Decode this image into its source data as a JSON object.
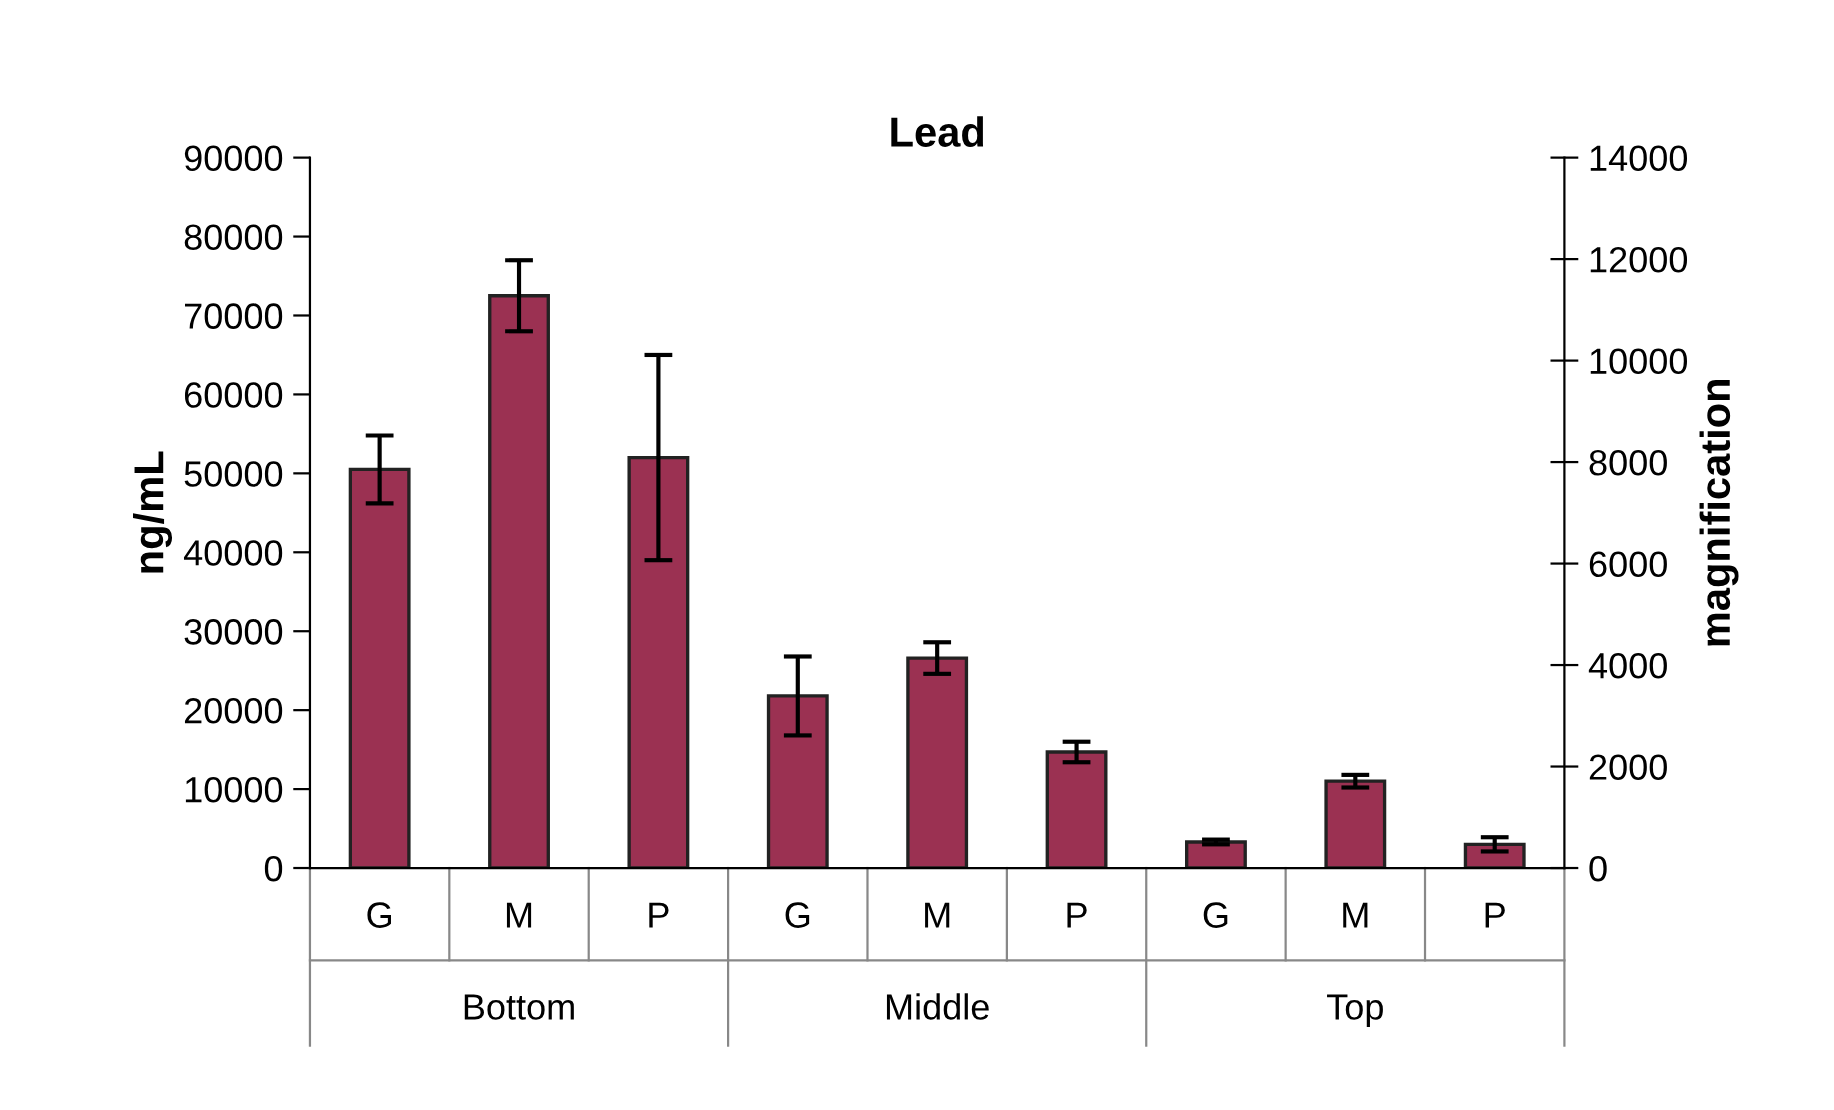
{
  "chart_data": {
    "type": "bar",
    "title": "Lead",
    "ylabel": "ng/mL",
    "y2label": "magnification",
    "categories": [
      "G",
      "M",
      "P",
      "G",
      "M",
      "P",
      "G",
      "M",
      "P"
    ],
    "annotations": [
      "Bottom",
      "Middle",
      "Top"
    ],
    "series": [
      {
        "color": "#9b3152",
        "values": [
          50500,
          72500,
          52000,
          21800,
          26600,
          14700,
          3300,
          11000,
          3000
        ],
        "errors": [
          4300,
          4500,
          13000,
          5000,
          2000,
          1300,
          300,
          800,
          900
        ]
      }
    ],
    "ylim": [
      0,
      90000
    ],
    "yticks": [
      0,
      10000,
      20000,
      30000,
      40000,
      50000,
      60000,
      70000,
      80000,
      90000
    ],
    "y2lim": [
      0,
      14000
    ],
    "y2ticks": [
      0,
      2000,
      4000,
      6000,
      8000,
      10000,
      12000,
      14000
    ],
    "grid": false,
    "legend": false
  }
}
